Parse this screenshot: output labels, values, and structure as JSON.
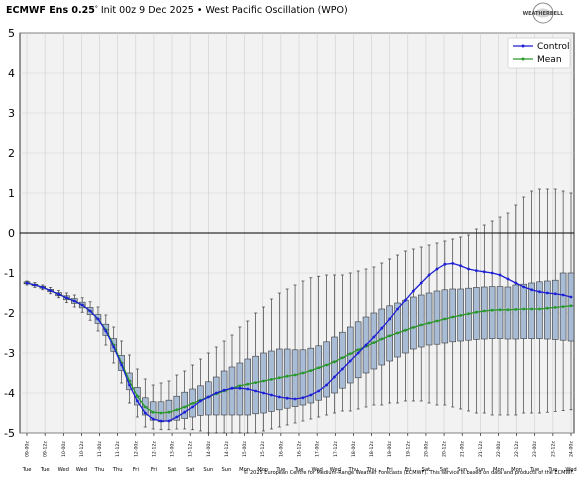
{
  "header": {
    "title_bold": "ECMWF Ens 0.25",
    "title_deg": "°",
    "title_rest": " Init 00z 9 Dec 2025 • West Pacific Oscillation (WPO)"
  },
  "logo": {
    "text": "WEATHERBELL"
  },
  "footer": {
    "credit": "© 2025 European Centre for Medium-Range Weather Forecasts (ECMWF). This service is based on data and products of the ECMWF."
  },
  "colors": {
    "control": "#1f1fd6",
    "mean": "#2a9a2a",
    "box_fill": "#a9bcd6",
    "box_edge": "#3a3a3a",
    "plot_bg": "#f2f2f2",
    "grid": "#cfcfcf"
  },
  "chart_data": {
    "type": "box",
    "title": "ECMWF Ens 0.25° Init 00z 9 Dec 2025 • West Pacific Oscillation (WPO)",
    "ylim": [
      -5,
      5
    ],
    "yticks": [
      -5,
      -4,
      -3,
      -2,
      -1,
      0,
      1,
      2,
      3,
      4,
      5
    ],
    "grid": true,
    "legend_position": "top-right",
    "x_labels": [
      "09-00z",
      "09-12z",
      "10-00z",
      "10-12z",
      "11-00z",
      "11-12z",
      "12-00z",
      "12-12z",
      "13-00z",
      "13-12z",
      "14-00z",
      "14-12z",
      "15-00z",
      "15-12z",
      "16-00z",
      "16-12z",
      "17-00z",
      "17-12z",
      "18-00z",
      "18-12z",
      "19-00z",
      "19-12z",
      "20-00z",
      "20-12z",
      "21-00z",
      "21-12z",
      "22-00z",
      "22-12z",
      "23-00z",
      "23-12z",
      "24-00z"
    ],
    "x_days": [
      "Tue",
      "Tue",
      "Wed",
      "Wed",
      "Thu",
      "Thu",
      "Fri",
      "Fri",
      "Sat",
      "Sat",
      "Sun",
      "Sun",
      "Mon",
      "Mon",
      "Tue",
      "Tue",
      "Wed",
      "Wed",
      "Thu",
      "Thu",
      "Fri",
      "Fri",
      "Sat",
      "Sat",
      "Sun",
      "Sun",
      "Mon",
      "Mon",
      "Tue",
      "Tue",
      "Wed"
    ],
    "series": [
      {
        "name": "Control",
        "values": [
          -1.25,
          -1.3,
          -1.36,
          -1.44,
          -1.53,
          -1.62,
          -1.7,
          -1.8,
          -1.95,
          -2.15,
          -2.45,
          -2.85,
          -3.3,
          -3.8,
          -4.2,
          -4.5,
          -4.65,
          -4.7,
          -4.7,
          -4.6,
          -4.48,
          -4.35,
          -4.2,
          -4.1,
          -4.0,
          -3.93,
          -3.88,
          -3.88,
          -3.9,
          -3.95,
          -4.0,
          -4.05,
          -4.1,
          -4.13,
          -4.15,
          -4.12,
          -4.05,
          -3.95,
          -3.8,
          -3.6,
          -3.4,
          -3.2,
          -3.0,
          -2.8,
          -2.6,
          -2.38,
          -2.15,
          -1.9,
          -1.68,
          -1.45,
          -1.25,
          -1.05,
          -0.9,
          -0.78,
          -0.76,
          -0.82,
          -0.9,
          -0.94,
          -0.97,
          -1.0,
          -1.05,
          -1.15,
          -1.25,
          -1.35,
          -1.42,
          -1.47,
          -1.5,
          -1.52,
          -1.55,
          -1.6
        ]
      },
      {
        "name": "Mean",
        "values": [
          -1.25,
          -1.3,
          -1.36,
          -1.44,
          -1.53,
          -1.62,
          -1.7,
          -1.8,
          -1.95,
          -2.15,
          -2.42,
          -2.8,
          -3.25,
          -3.7,
          -4.08,
          -4.35,
          -4.48,
          -4.5,
          -4.48,
          -4.42,
          -4.35,
          -4.26,
          -4.18,
          -4.1,
          -4.02,
          -3.95,
          -3.88,
          -3.82,
          -3.78,
          -3.74,
          -3.7,
          -3.66,
          -3.62,
          -3.58,
          -3.55,
          -3.5,
          -3.44,
          -3.37,
          -3.3,
          -3.22,
          -3.12,
          -3.02,
          -2.92,
          -2.83,
          -2.74,
          -2.65,
          -2.57,
          -2.5,
          -2.43,
          -2.36,
          -2.3,
          -2.25,
          -2.2,
          -2.15,
          -2.1,
          -2.06,
          -2.02,
          -1.98,
          -1.95,
          -1.93,
          -1.92,
          -1.92,
          -1.91,
          -1.9,
          -1.9,
          -1.9,
          -1.88,
          -1.86,
          -1.84,
          -1.82
        ]
      }
    ],
    "boxes": [
      [
        -1.3,
        -1.27,
        -1.25,
        -1.22,
        -1.2
      ],
      [
        -1.36,
        -1.32,
        -1.3,
        -1.28,
        -1.24
      ],
      [
        -1.42,
        -1.38,
        -1.36,
        -1.33,
        -1.3
      ],
      [
        -1.52,
        -1.47,
        -1.44,
        -1.41,
        -1.36
      ],
      [
        -1.62,
        -1.57,
        -1.53,
        -1.49,
        -1.44
      ],
      [
        -1.74,
        -1.67,
        -1.62,
        -1.57,
        -1.5
      ],
      [
        -1.85,
        -1.76,
        -1.7,
        -1.64,
        -1.55
      ],
      [
        -1.98,
        -1.87,
        -1.8,
        -1.73,
        -1.62
      ],
      [
        -2.18,
        -2.04,
        -1.95,
        -1.86,
        -1.72
      ],
      [
        -2.45,
        -2.26,
        -2.15,
        -2.04,
        -1.85
      ],
      [
        -2.8,
        -2.56,
        -2.42,
        -2.28,
        -2.05
      ],
      [
        -3.25,
        -2.96,
        -2.8,
        -2.64,
        -2.35
      ],
      [
        -3.75,
        -3.44,
        -3.25,
        -3.06,
        -2.7
      ],
      [
        -4.25,
        -3.92,
        -3.7,
        -3.5,
        -3.05
      ],
      [
        -4.6,
        -4.3,
        -4.08,
        -3.86,
        -3.4
      ],
      [
        -4.85,
        -4.55,
        -4.35,
        -4.12,
        -3.65
      ],
      [
        -4.9,
        -4.68,
        -4.48,
        -4.22,
        -3.8
      ],
      [
        -4.92,
        -4.72,
        -4.5,
        -4.22,
        -3.75
      ],
      [
        -4.92,
        -4.7,
        -4.48,
        -4.18,
        -3.7
      ],
      [
        -4.9,
        -4.68,
        -4.42,
        -4.08,
        -3.55
      ],
      [
        -4.9,
        -4.64,
        -4.35,
        -3.98,
        -3.45
      ],
      [
        -4.92,
        -4.6,
        -4.26,
        -3.9,
        -3.3
      ],
      [
        -4.95,
        -4.56,
        -4.18,
        -3.82,
        -3.15
      ],
      [
        -5.0,
        -4.55,
        -4.1,
        -3.72,
        -3.0
      ],
      [
        -5.0,
        -4.55,
        -4.02,
        -3.6,
        -2.85
      ],
      [
        -5.0,
        -4.55,
        -3.95,
        -3.45,
        -2.7
      ],
      [
        -5.0,
        -4.55,
        -3.88,
        -3.35,
        -2.55
      ],
      [
        -5.0,
        -4.55,
        -3.82,
        -3.25,
        -2.35
      ],
      [
        -5.0,
        -4.55,
        -3.78,
        -3.15,
        -2.2
      ],
      [
        -5.0,
        -4.52,
        -3.74,
        -3.08,
        -2.0
      ],
      [
        -4.95,
        -4.5,
        -3.7,
        -3.0,
        -1.85
      ],
      [
        -4.9,
        -4.46,
        -3.66,
        -2.95,
        -1.65
      ],
      [
        -4.85,
        -4.42,
        -3.62,
        -2.9,
        -1.5
      ],
      [
        -4.8,
        -4.38,
        -3.58,
        -2.9,
        -1.4
      ],
      [
        -4.75,
        -4.34,
        -3.55,
        -2.92,
        -1.3
      ],
      [
        -4.7,
        -4.3,
        -3.5,
        -2.92,
        -1.2
      ],
      [
        -4.65,
        -4.25,
        -3.44,
        -2.88,
        -1.12
      ],
      [
        -4.6,
        -4.18,
        -3.37,
        -2.82,
        -1.08
      ],
      [
        -4.55,
        -4.1,
        -3.3,
        -2.72,
        -1.05
      ],
      [
        -4.5,
        -4.0,
        -3.22,
        -2.6,
        -1.05
      ],
      [
        -4.45,
        -3.88,
        -3.12,
        -2.48,
        -1.05
      ],
      [
        -4.45,
        -3.75,
        -3.02,
        -2.35,
        -1.0
      ],
      [
        -4.4,
        -3.62,
        -2.92,
        -2.22,
        -0.95
      ],
      [
        -4.35,
        -3.5,
        -2.83,
        -2.1,
        -0.9
      ],
      [
        -4.3,
        -3.4,
        -2.74,
        -2.0,
        -0.85
      ],
      [
        -4.3,
        -3.3,
        -2.65,
        -1.9,
        -0.75
      ],
      [
        -4.25,
        -3.2,
        -2.57,
        -1.82,
        -0.65
      ],
      [
        -4.25,
        -3.1,
        -2.5,
        -1.75,
        -0.55
      ],
      [
        -4.2,
        -3.0,
        -2.43,
        -1.68,
        -0.45
      ],
      [
        -4.2,
        -2.9,
        -2.36,
        -1.6,
        -0.4
      ],
      [
        -4.2,
        -2.85,
        -2.3,
        -1.55,
        -0.35
      ],
      [
        -4.25,
        -2.8,
        -2.25,
        -1.5,
        -0.3
      ],
      [
        -4.3,
        -2.78,
        -2.2,
        -1.45,
        -0.25
      ],
      [
        -4.3,
        -2.75,
        -2.15,
        -1.42,
        -0.2
      ],
      [
        -4.35,
        -2.72,
        -2.1,
        -1.4,
        -0.15
      ],
      [
        -4.4,
        -2.7,
        -2.06,
        -1.4,
        -0.1
      ],
      [
        -4.45,
        -2.68,
        -2.02,
        -1.38,
        -0.05
      ],
      [
        -4.5,
        -2.66,
        -1.98,
        -1.36,
        0.1
      ],
      [
        -4.5,
        -2.65,
        -1.95,
        -1.35,
        0.2
      ],
      [
        -4.55,
        -2.64,
        -1.93,
        -1.34,
        0.3
      ],
      [
        -4.55,
        -2.64,
        -1.92,
        -1.34,
        0.4
      ],
      [
        -4.55,
        -2.65,
        -1.92,
        -1.35,
        0.5
      ],
      [
        -4.55,
        -2.65,
        -1.91,
        -1.3,
        0.7
      ],
      [
        -4.5,
        -2.64,
        -1.9,
        -1.28,
        0.9
      ],
      [
        -4.5,
        -2.64,
        -1.9,
        -1.25,
        1.05
      ],
      [
        -4.5,
        -2.64,
        -1.9,
        -1.22,
        1.1
      ],
      [
        -4.48,
        -2.65,
        -1.88,
        -1.2,
        1.1
      ],
      [
        -4.46,
        -2.66,
        -1.86,
        -1.18,
        1.1
      ],
      [
        -4.44,
        -2.68,
        -1.84,
        -1.0,
        1.05
      ],
      [
        -4.42,
        -2.7,
        -1.82,
        -1.0,
        1.0
      ]
    ]
  }
}
